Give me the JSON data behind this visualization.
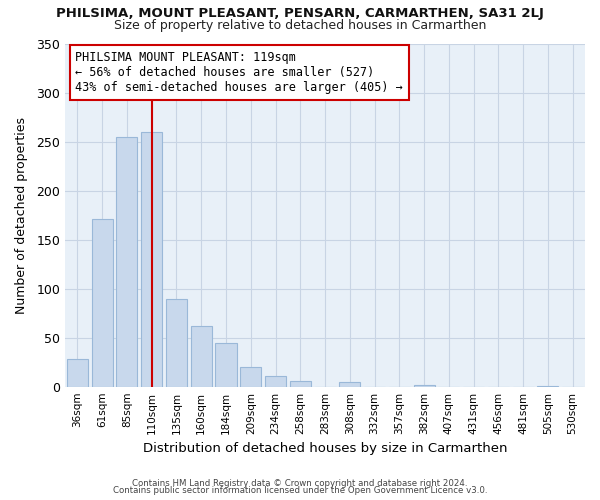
{
  "title": "PHILSIMA, MOUNT PLEASANT, PENSARN, CARMARTHEN, SA31 2LJ",
  "subtitle": "Size of property relative to detached houses in Carmarthen",
  "xlabel": "Distribution of detached houses by size in Carmarthen",
  "ylabel": "Number of detached properties",
  "bar_color": "#c8d8ec",
  "bar_edge_color": "#9ab8d8",
  "plot_bg_color": "#e8f0f8",
  "categories": [
    "36sqm",
    "61sqm",
    "85sqm",
    "110sqm",
    "135sqm",
    "160sqm",
    "184sqm",
    "209sqm",
    "234sqm",
    "258sqm",
    "283sqm",
    "308sqm",
    "332sqm",
    "357sqm",
    "382sqm",
    "407sqm",
    "431sqm",
    "456sqm",
    "481sqm",
    "505sqm",
    "530sqm"
  ],
  "values": [
    28,
    171,
    255,
    260,
    90,
    62,
    45,
    20,
    11,
    6,
    0,
    5,
    0,
    0,
    2,
    0,
    0,
    0,
    0,
    1,
    0
  ],
  "ylim": [
    0,
    350
  ],
  "yticks": [
    0,
    50,
    100,
    150,
    200,
    250,
    300,
    350
  ],
  "property_line_color": "#cc0000",
  "annotation_title": "PHILSIMA MOUNT PLEASANT: 119sqm",
  "annotation_line1": "← 56% of detached houses are smaller (527)",
  "annotation_line2": "43% of semi-detached houses are larger (405) →",
  "annotation_box_color": "#ffffff",
  "annotation_box_edge": "#cc0000",
  "footer1": "Contains HM Land Registry data © Crown copyright and database right 2024.",
  "footer2": "Contains public sector information licensed under the Open Government Licence v3.0.",
  "background_color": "#ffffff",
  "grid_color": "#c8d4e4"
}
